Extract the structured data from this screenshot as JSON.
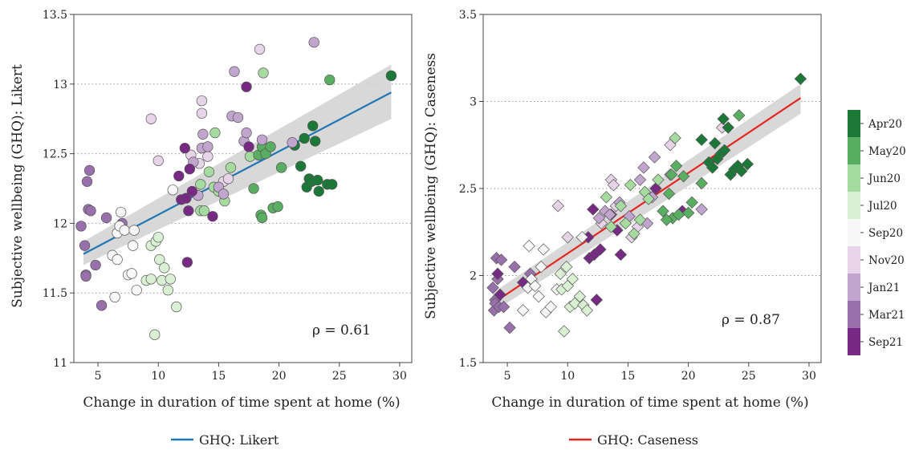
{
  "chart_data": [
    {
      "type": "scatter",
      "xlabel": "Change in duration of time spent at home (%)",
      "ylabel": "Subjective wellbeing (GHQ): Likert",
      "xlim": [
        3,
        31
      ],
      "ylim": [
        11,
        13.5
      ],
      "xticks": [
        5,
        10,
        15,
        20,
        25,
        30
      ],
      "yticks": [
        11,
        11.5,
        12,
        12.5,
        13,
        13.5
      ],
      "ytick_labels": [
        "11",
        "11.5",
        "12",
        "12.5",
        "13",
        "13.5"
      ],
      "grid": "horizontal dotted",
      "annotation": "ρ = 0.61",
      "marker": "circle",
      "fit": {
        "name": "GHQ: Likert",
        "x0": 3.8,
        "x1": 29.3,
        "y0": 11.78,
        "y1": 12.94,
        "band_lo": [
          11.7,
          12.75
        ],
        "band_hi": [
          11.87,
          13.14
        ],
        "color": "#1f77b4"
      },
      "points": [
        {
          "x": 3.6,
          "y": 11.98,
          "g": 7
        },
        {
          "x": 3.9,
          "y": 11.84,
          "g": 7
        },
        {
          "x": 4.0,
          "y": 11.63,
          "g": 7
        },
        {
          "x": 4.0,
          "y": 11.62,
          "g": 7
        },
        {
          "x": 4.1,
          "y": 12.3,
          "g": 7
        },
        {
          "x": 4.2,
          "y": 12.1,
          "g": 7
        },
        {
          "x": 4.4,
          "y": 12.09,
          "g": 7
        },
        {
          "x": 4.3,
          "y": 12.38,
          "g": 7
        },
        {
          "x": 4.8,
          "y": 11.7,
          "g": 7
        },
        {
          "x": 5.3,
          "y": 11.41,
          "g": 7
        },
        {
          "x": 5.7,
          "y": 12.04,
          "g": 7
        },
        {
          "x": 7.0,
          "y": 12.0,
          "g": 7
        },
        {
          "x": 6.4,
          "y": 11.47,
          "g": 4
        },
        {
          "x": 6.2,
          "y": 11.77,
          "g": 4
        },
        {
          "x": 6.6,
          "y": 11.74,
          "g": 4
        },
        {
          "x": 6.6,
          "y": 11.93,
          "g": 4
        },
        {
          "x": 6.8,
          "y": 11.98,
          "g": 4
        },
        {
          "x": 6.9,
          "y": 12.08,
          "g": 4
        },
        {
          "x": 7.2,
          "y": 11.95,
          "g": 4
        },
        {
          "x": 7.5,
          "y": 11.63,
          "g": 4
        },
        {
          "x": 7.8,
          "y": 11.64,
          "g": 4
        },
        {
          "x": 7.9,
          "y": 11.84,
          "g": 4
        },
        {
          "x": 8.0,
          "y": 11.95,
          "g": 4
        },
        {
          "x": 8.2,
          "y": 11.52,
          "g": 4
        },
        {
          "x": 11.2,
          "y": 12.24,
          "g": 4
        },
        {
          "x": 9.0,
          "y": 11.59,
          "g": 3
        },
        {
          "x": 9.4,
          "y": 11.6,
          "g": 3
        },
        {
          "x": 9.4,
          "y": 11.84,
          "g": 3
        },
        {
          "x": 9.7,
          "y": 11.2,
          "g": 3
        },
        {
          "x": 9.8,
          "y": 11.87,
          "g": 3
        },
        {
          "x": 10.0,
          "y": 11.9,
          "g": 3
        },
        {
          "x": 10.1,
          "y": 11.74,
          "g": 3
        },
        {
          "x": 10.3,
          "y": 11.59,
          "g": 3
        },
        {
          "x": 10.5,
          "y": 11.68,
          "g": 3
        },
        {
          "x": 10.8,
          "y": 11.52,
          "g": 3
        },
        {
          "x": 11.0,
          "y": 11.6,
          "g": 3
        },
        {
          "x": 11.5,
          "y": 11.4,
          "g": 3
        },
        {
          "x": 13.5,
          "y": 12.09,
          "g": 2
        },
        {
          "x": 13.5,
          "y": 12.28,
          "g": 2
        },
        {
          "x": 13.8,
          "y": 12.09,
          "g": 2
        },
        {
          "x": 14.2,
          "y": 12.37,
          "g": 2
        },
        {
          "x": 14.6,
          "y": 12.26,
          "g": 2
        },
        {
          "x": 14.7,
          "y": 12.65,
          "g": 2
        },
        {
          "x": 15.0,
          "y": 12.23,
          "g": 2
        },
        {
          "x": 15.5,
          "y": 12.16,
          "g": 2
        },
        {
          "x": 16.0,
          "y": 12.4,
          "g": 2
        },
        {
          "x": 17.6,
          "y": 12.48,
          "g": 2
        },
        {
          "x": 18.7,
          "y": 13.08,
          "g": 2
        },
        {
          "x": 18.3,
          "y": 12.49,
          "g": 1
        },
        {
          "x": 18.5,
          "y": 12.06,
          "g": 1
        },
        {
          "x": 18.6,
          "y": 12.04,
          "g": 1
        },
        {
          "x": 18.6,
          "y": 12.55,
          "g": 1
        },
        {
          "x": 18.9,
          "y": 12.5,
          "g": 1
        },
        {
          "x": 19.3,
          "y": 12.55,
          "g": 1
        },
        {
          "x": 19.5,
          "y": 12.11,
          "g": 1
        },
        {
          "x": 19.9,
          "y": 12.12,
          "g": 1
        },
        {
          "x": 20.2,
          "y": 12.4,
          "g": 1
        },
        {
          "x": 24.2,
          "y": 13.03,
          "g": 1
        },
        {
          "x": 17.9,
          "y": 12.25,
          "g": 1
        },
        {
          "x": 21.3,
          "y": 12.56,
          "g": 0
        },
        {
          "x": 21.8,
          "y": 12.41,
          "g": 0
        },
        {
          "x": 22.1,
          "y": 12.61,
          "g": 0
        },
        {
          "x": 22.3,
          "y": 12.26,
          "g": 0
        },
        {
          "x": 22.5,
          "y": 12.32,
          "g": 0
        },
        {
          "x": 22.7,
          "y": 12.3,
          "g": 0
        },
        {
          "x": 22.8,
          "y": 12.7,
          "g": 0
        },
        {
          "x": 23.0,
          "y": 12.59,
          "g": 0
        },
        {
          "x": 23.2,
          "y": 12.31,
          "g": 0
        },
        {
          "x": 23.3,
          "y": 12.23,
          "g": 0
        },
        {
          "x": 24.0,
          "y": 12.28,
          "g": 0
        },
        {
          "x": 24.4,
          "y": 12.28,
          "g": 0
        },
        {
          "x": 29.3,
          "y": 13.06,
          "g": 0
        },
        {
          "x": 9.4,
          "y": 12.75,
          "g": 5
        },
        {
          "x": 10.0,
          "y": 12.45,
          "g": 5
        },
        {
          "x": 12.7,
          "y": 12.49,
          "g": 5
        },
        {
          "x": 13.6,
          "y": 12.88,
          "g": 5
        },
        {
          "x": 13.6,
          "y": 12.79,
          "g": 5
        },
        {
          "x": 13.4,
          "y": 12.43,
          "g": 5
        },
        {
          "x": 14.1,
          "y": 12.48,
          "g": 5
        },
        {
          "x": 15.4,
          "y": 12.3,
          "g": 5
        },
        {
          "x": 15.8,
          "y": 12.32,
          "g": 5
        },
        {
          "x": 18.4,
          "y": 13.25,
          "g": 5
        },
        {
          "x": 12.9,
          "y": 12.44,
          "g": 6
        },
        {
          "x": 13.3,
          "y": 12.2,
          "g": 6
        },
        {
          "x": 13.6,
          "y": 12.54,
          "g": 6
        },
        {
          "x": 13.7,
          "y": 12.64,
          "g": 6
        },
        {
          "x": 14.1,
          "y": 12.55,
          "g": 6
        },
        {
          "x": 15.0,
          "y": 12.26,
          "g": 6
        },
        {
          "x": 15.4,
          "y": 12.21,
          "g": 6
        },
        {
          "x": 16.1,
          "y": 12.77,
          "g": 6
        },
        {
          "x": 16.3,
          "y": 13.09,
          "g": 6
        },
        {
          "x": 16.6,
          "y": 12.76,
          "g": 6
        },
        {
          "x": 17.1,
          "y": 12.59,
          "g": 6
        },
        {
          "x": 17.3,
          "y": 12.65,
          "g": 6
        },
        {
          "x": 18.6,
          "y": 12.6,
          "g": 6
        },
        {
          "x": 21.1,
          "y": 12.58,
          "g": 6
        },
        {
          "x": 22.9,
          "y": 13.3,
          "g": 6
        },
        {
          "x": 11.7,
          "y": 12.34,
          "g": 8
        },
        {
          "x": 11.9,
          "y": 12.17,
          "g": 8
        },
        {
          "x": 12.2,
          "y": 12.54,
          "g": 8
        },
        {
          "x": 12.3,
          "y": 12.18,
          "g": 8
        },
        {
          "x": 12.4,
          "y": 11.72,
          "g": 8
        },
        {
          "x": 12.5,
          "y": 12.09,
          "g": 8
        },
        {
          "x": 12.6,
          "y": 12.39,
          "g": 8
        },
        {
          "x": 12.8,
          "y": 12.23,
          "g": 8
        },
        {
          "x": 14.5,
          "y": 12.05,
          "g": 8
        },
        {
          "x": 17.3,
          "y": 12.98,
          "g": 8
        },
        {
          "x": 17.5,
          "y": 12.55,
          "g": 8
        }
      ]
    },
    {
      "type": "scatter",
      "xlabel": "Change in duration of time spent at home (%)",
      "ylabel": "Subjective wellbeing (GHQ): Caseness",
      "xlim": [
        3,
        31
      ],
      "ylim": [
        1.5,
        3.5
      ],
      "xticks": [
        5,
        10,
        15,
        20,
        25,
        30
      ],
      "yticks": [
        1.5,
        2,
        2.5,
        3,
        3.5
      ],
      "ytick_labels": [
        "1.5",
        "2",
        "2.5",
        "3",
        "3.5"
      ],
      "grid": "horizontal dotted",
      "annotation": "ρ = 0.87",
      "marker": "diamond",
      "fit": {
        "name": "GHQ: Caseness",
        "x0": 3.8,
        "x1": 29.3,
        "y0": 1.84,
        "y1": 3.02,
        "band_lo": [
          1.79,
          2.93
        ],
        "band_hi": [
          1.9,
          3.1
        ],
        "color": "#e52620"
      },
      "points": [
        {
          "x": 3.8,
          "y": 1.93,
          "g": 7
        },
        {
          "x": 3.9,
          "y": 1.8,
          "g": 7
        },
        {
          "x": 4.0,
          "y": 1.86,
          "g": 7
        },
        {
          "x": 4.0,
          "y": 1.84,
          "g": 7
        },
        {
          "x": 4.1,
          "y": 2.1,
          "g": 7
        },
        {
          "x": 4.2,
          "y": 1.98,
          "g": 7
        },
        {
          "x": 4.3,
          "y": 1.82,
          "g": 7
        },
        {
          "x": 4.5,
          "y": 2.09,
          "g": 7
        },
        {
          "x": 4.7,
          "y": 1.82,
          "g": 7
        },
        {
          "x": 5.2,
          "y": 1.7,
          "g": 7
        },
        {
          "x": 5.6,
          "y": 2.05,
          "g": 7
        },
        {
          "x": 6.9,
          "y": 2.01,
          "g": 7
        },
        {
          "x": 4.2,
          "y": 2.01,
          "g": 8
        },
        {
          "x": 4.4,
          "y": 1.89,
          "g": 8
        },
        {
          "x": 6.3,
          "y": 1.96,
          "g": 8
        },
        {
          "x": 11.7,
          "y": 2.22,
          "g": 8
        },
        {
          "x": 11.8,
          "y": 2.1,
          "g": 8
        },
        {
          "x": 12.1,
          "y": 2.38,
          "g": 8
        },
        {
          "x": 12.2,
          "y": 2.12,
          "g": 8
        },
        {
          "x": 12.4,
          "y": 1.86,
          "g": 8
        },
        {
          "x": 12.7,
          "y": 2.15,
          "g": 8
        },
        {
          "x": 13.6,
          "y": 2.35,
          "g": 8
        },
        {
          "x": 14.1,
          "y": 2.26,
          "g": 8
        },
        {
          "x": 14.4,
          "y": 2.12,
          "g": 8
        },
        {
          "x": 17.3,
          "y": 2.5,
          "g": 8
        },
        {
          "x": 19.5,
          "y": 2.37,
          "g": 8
        },
        {
          "x": 6.3,
          "y": 1.8,
          "g": 4
        },
        {
          "x": 6.7,
          "y": 1.93,
          "g": 4
        },
        {
          "x": 6.8,
          "y": 2.17,
          "g": 4
        },
        {
          "x": 7.0,
          "y": 1.98,
          "g": 4
        },
        {
          "x": 7.3,
          "y": 1.94,
          "g": 4
        },
        {
          "x": 7.6,
          "y": 1.88,
          "g": 4
        },
        {
          "x": 7.8,
          "y": 2.05,
          "g": 4
        },
        {
          "x": 8.0,
          "y": 2.15,
          "g": 4
        },
        {
          "x": 8.2,
          "y": 1.79,
          "g": 4
        },
        {
          "x": 8.6,
          "y": 1.82,
          "g": 4
        },
        {
          "x": 9.1,
          "y": 1.92,
          "g": 4
        },
        {
          "x": 11.2,
          "y": 2.22,
          "g": 4
        },
        {
          "x": 9.2,
          "y": 2.4,
          "g": 5
        },
        {
          "x": 10.0,
          "y": 2.22,
          "g": 5
        },
        {
          "x": 12.8,
          "y": 2.3,
          "g": 5
        },
        {
          "x": 13.6,
          "y": 2.55,
          "g": 5
        },
        {
          "x": 13.8,
          "y": 2.52,
          "g": 5
        },
        {
          "x": 14.0,
          "y": 2.4,
          "g": 5
        },
        {
          "x": 15.3,
          "y": 2.22,
          "g": 5
        },
        {
          "x": 15.8,
          "y": 2.28,
          "g": 5
        },
        {
          "x": 18.5,
          "y": 2.75,
          "g": 5
        },
        {
          "x": 22.8,
          "y": 2.85,
          "g": 5
        },
        {
          "x": 12.6,
          "y": 2.33,
          "g": 6
        },
        {
          "x": 13.1,
          "y": 2.37,
          "g": 6
        },
        {
          "x": 13.5,
          "y": 2.35,
          "g": 6
        },
        {
          "x": 14.3,
          "y": 2.42,
          "g": 6
        },
        {
          "x": 15.1,
          "y": 2.34,
          "g": 6
        },
        {
          "x": 16.0,
          "y": 2.55,
          "g": 6
        },
        {
          "x": 16.3,
          "y": 2.62,
          "g": 6
        },
        {
          "x": 17.0,
          "y": 2.45,
          "g": 6
        },
        {
          "x": 17.2,
          "y": 2.68,
          "g": 6
        },
        {
          "x": 18.5,
          "y": 2.58,
          "g": 6
        },
        {
          "x": 16.6,
          "y": 2.3,
          "g": 6
        },
        {
          "x": 21.1,
          "y": 2.38,
          "g": 6
        },
        {
          "x": 9.4,
          "y": 2.01,
          "g": 3
        },
        {
          "x": 9.5,
          "y": 1.92,
          "g": 3
        },
        {
          "x": 9.7,
          "y": 1.68,
          "g": 3
        },
        {
          "x": 9.9,
          "y": 2.05,
          "g": 3
        },
        {
          "x": 10.0,
          "y": 1.94,
          "g": 3
        },
        {
          "x": 10.2,
          "y": 1.82,
          "g": 3
        },
        {
          "x": 10.4,
          "y": 1.98,
          "g": 3
        },
        {
          "x": 10.6,
          "y": 1.84,
          "g": 3
        },
        {
          "x": 11.0,
          "y": 1.88,
          "g": 3
        },
        {
          "x": 11.3,
          "y": 1.83,
          "g": 3
        },
        {
          "x": 11.6,
          "y": 1.8,
          "g": 3
        },
        {
          "x": 13.2,
          "y": 2.45,
          "g": 2
        },
        {
          "x": 13.6,
          "y": 2.28,
          "g": 2
        },
        {
          "x": 14.4,
          "y": 2.4,
          "g": 2
        },
        {
          "x": 14.8,
          "y": 2.3,
          "g": 2
        },
        {
          "x": 15.2,
          "y": 2.52,
          "g": 2
        },
        {
          "x": 15.5,
          "y": 2.24,
          "g": 2
        },
        {
          "x": 16.0,
          "y": 2.32,
          "g": 2
        },
        {
          "x": 16.4,
          "y": 2.48,
          "g": 2
        },
        {
          "x": 17.5,
          "y": 2.55,
          "g": 2
        },
        {
          "x": 18.9,
          "y": 2.79,
          "g": 2
        },
        {
          "x": 16.7,
          "y": 2.44,
          "g": 2
        },
        {
          "x": 18.4,
          "y": 2.47,
          "g": 1
        },
        {
          "x": 18.6,
          "y": 2.58,
          "g": 1
        },
        {
          "x": 18.7,
          "y": 2.33,
          "g": 1
        },
        {
          "x": 19.0,
          "y": 2.63,
          "g": 1
        },
        {
          "x": 19.2,
          "y": 2.35,
          "g": 1
        },
        {
          "x": 19.6,
          "y": 2.57,
          "g": 1
        },
        {
          "x": 20.0,
          "y": 2.36,
          "g": 1
        },
        {
          "x": 20.3,
          "y": 2.42,
          "g": 1
        },
        {
          "x": 21.1,
          "y": 2.53,
          "g": 1
        },
        {
          "x": 24.2,
          "y": 2.92,
          "g": 1
        },
        {
          "x": 17.9,
          "y": 2.37,
          "g": 1
        },
        {
          "x": 18.2,
          "y": 2.32,
          "g": 1
        },
        {
          "x": 21.1,
          "y": 2.78,
          "g": 0
        },
        {
          "x": 21.7,
          "y": 2.65,
          "g": 0
        },
        {
          "x": 22.0,
          "y": 2.62,
          "g": 0
        },
        {
          "x": 22.2,
          "y": 2.76,
          "g": 0
        },
        {
          "x": 22.4,
          "y": 2.67,
          "g": 0
        },
        {
          "x": 22.7,
          "y": 2.7,
          "g": 0
        },
        {
          "x": 22.9,
          "y": 2.9,
          "g": 0
        },
        {
          "x": 23.0,
          "y": 2.72,
          "g": 0
        },
        {
          "x": 23.3,
          "y": 2.85,
          "g": 0
        },
        {
          "x": 23.5,
          "y": 2.58,
          "g": 0
        },
        {
          "x": 23.8,
          "y": 2.61,
          "g": 0
        },
        {
          "x": 24.1,
          "y": 2.63,
          "g": 0
        },
        {
          "x": 24.4,
          "y": 2.6,
          "g": 0
        },
        {
          "x": 24.9,
          "y": 2.64,
          "g": 0
        },
        {
          "x": 29.3,
          "y": 3.13,
          "g": 0
        }
      ]
    }
  ],
  "colorbar": {
    "labels": [
      "Apr20",
      "May20",
      "Jun20",
      "Jul20",
      "Sep20",
      "Nov20",
      "Jan21",
      "Mar21",
      "Sep21"
    ],
    "colors": [
      "#1b7837",
      "#5aae61",
      "#a6dba0",
      "#d9f0d3",
      "#f7f7f7",
      "#e7d4e8",
      "#c2a5cf",
      "#9970ab",
      "#762a83"
    ]
  },
  "legend": [
    {
      "label": "GHQ: Likert",
      "color": "#1f77b4"
    },
    {
      "label": "GHQ: Caseness",
      "color": "#e52620"
    }
  ]
}
